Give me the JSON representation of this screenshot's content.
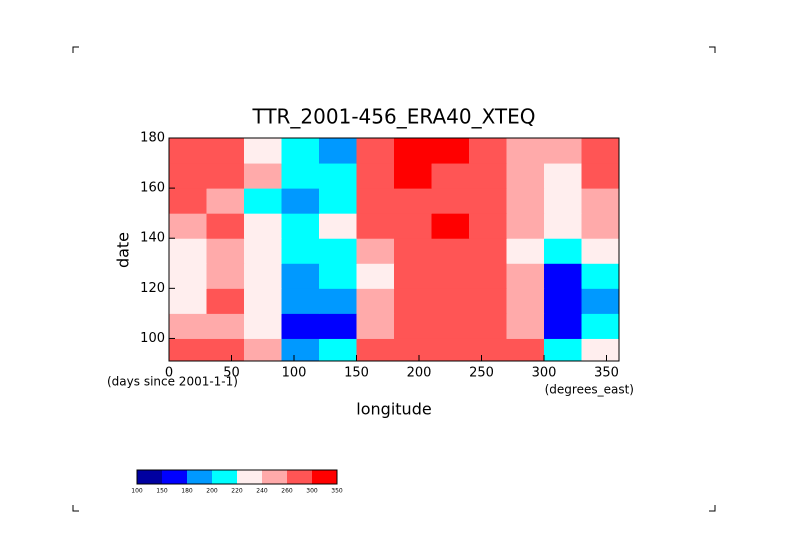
{
  "chart_data": {
    "type": "heatmap",
    "title": "TTR_2001-456_ERA40_XTEQ",
    "xlabel": "longitude",
    "ylabel": "date",
    "x_note": "(degrees_east)",
    "y_note": "(days since 2001-1-1)",
    "x": [
      15,
      45,
      75,
      105,
      135,
      165,
      195,
      225,
      255,
      285,
      315,
      345
    ],
    "y": [
      95,
      105,
      115,
      125,
      135,
      145,
      155,
      165,
      175
    ],
    "z": [
      [
        270,
        280,
        240,
        190,
        200,
        260,
        280,
        290,
        290,
        260,
        200,
        220
      ],
      [
        240,
        250,
        220,
        170,
        170,
        250,
        280,
        290,
        290,
        250,
        170,
        200
      ],
      [
        230,
        260,
        230,
        180,
        190,
        240,
        280,
        290,
        290,
        240,
        160,
        190
      ],
      [
        220,
        250,
        220,
        190,
        200,
        230,
        270,
        290,
        290,
        240,
        170,
        210
      ],
      [
        220,
        240,
        230,
        200,
        210,
        250,
        280,
        290,
        290,
        230,
        200,
        220
      ],
      [
        250,
        260,
        230,
        200,
        220,
        260,
        290,
        300,
        290,
        250,
        220,
        240
      ],
      [
        260,
        250,
        210,
        190,
        200,
        260,
        290,
        290,
        280,
        250,
        230,
        250
      ],
      [
        270,
        260,
        240,
        210,
        210,
        270,
        300,
        290,
        280,
        240,
        230,
        260
      ],
      [
        280,
        270,
        230,
        200,
        190,
        270,
        300,
        310,
        290,
        250,
        240,
        290
      ]
    ],
    "xlim": [
      0,
      360
    ],
    "xticks": [
      0,
      50,
      100,
      150,
      200,
      250,
      300,
      350
    ],
    "ylim": [
      91,
      180
    ],
    "yticks": [
      100,
      120,
      140,
      160,
      180
    ],
    "levels": [
      100,
      150,
      180,
      200,
      220,
      240,
      260,
      300,
      350
    ],
    "colors": [
      "#0000a0",
      "#0000ff",
      "#0099ff",
      "#00ffff",
      "#ffeeee",
      "#ffaaaa",
      "#ff5555",
      "#ff0000"
    ]
  }
}
